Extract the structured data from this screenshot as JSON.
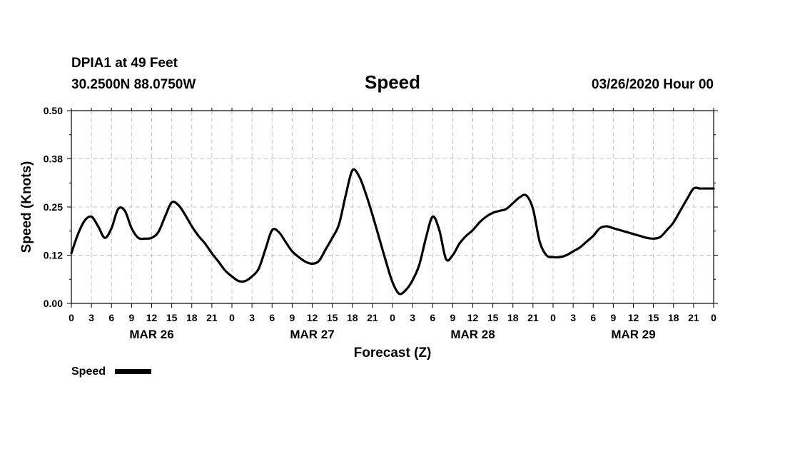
{
  "header": {
    "station": "DPIA1 at 49 Feet",
    "coords": "30.2500N 88.0750W",
    "title": "Speed",
    "run": "03/26/2020 Hour 00"
  },
  "legend": {
    "label": "Speed"
  },
  "colors": {
    "line": "#000000",
    "grid": "#c8c8c8"
  },
  "chart_data": {
    "type": "line",
    "title": "Speed",
    "xlabel": "Forecast (Z)",
    "ylabel": "Speed (Knots)",
    "ylim": [
      0,
      0.5
    ],
    "yticks": [
      "0.00",
      "0.12",
      "0.25",
      "0.38",
      "0.50"
    ],
    "xlim_hours": [
      0,
      96
    ],
    "xtick_labels": [
      "0",
      "3",
      "6",
      "9",
      "12",
      "15",
      "18",
      "21",
      "0",
      "3",
      "6",
      "9",
      "12",
      "15",
      "18",
      "21",
      "0",
      "3",
      "6",
      "9",
      "12",
      "15",
      "18",
      "21",
      "0",
      "3",
      "6",
      "9",
      "12",
      "15",
      "18",
      "21",
      "0"
    ],
    "date_labels": [
      {
        "hour": 12,
        "label": "MAR 26"
      },
      {
        "hour": 36,
        "label": "MAR 27"
      },
      {
        "hour": 60,
        "label": "MAR 28"
      },
      {
        "hour": 84,
        "label": "MAR 29"
      }
    ],
    "grid": true,
    "legend_position": "bottom-left",
    "series": [
      {
        "name": "Speed",
        "x_hours": [
          0,
          1,
          2,
          3,
          4,
          5,
          6,
          7,
          8,
          9,
          10,
          11,
          12,
          13,
          14,
          15,
          16,
          17,
          18,
          19,
          20,
          21,
          22,
          23,
          24,
          25,
          26,
          27,
          28,
          29,
          30,
          31,
          32,
          33,
          34,
          35,
          36,
          37,
          38,
          39,
          40,
          41,
          42,
          43,
          44,
          45,
          46,
          47,
          48,
          49,
          50,
          51,
          52,
          53,
          54,
          55,
          56,
          57,
          58,
          59,
          60,
          61,
          62,
          63,
          64,
          65,
          66,
          67,
          68,
          69,
          70,
          71,
          72,
          73,
          74,
          75,
          76,
          77,
          78,
          79,
          80,
          81,
          82,
          83,
          84,
          85,
          86,
          87,
          88,
          89,
          90,
          91,
          92,
          93,
          94,
          95,
          96
        ],
        "values": [
          0.13,
          0.18,
          0.215,
          0.225,
          0.2,
          0.17,
          0.195,
          0.245,
          0.24,
          0.195,
          0.17,
          0.168,
          0.17,
          0.185,
          0.225,
          0.262,
          0.255,
          0.23,
          0.2,
          0.175,
          0.155,
          0.13,
          0.108,
          0.085,
          0.07,
          0.058,
          0.058,
          0.07,
          0.09,
          0.14,
          0.19,
          0.185,
          0.16,
          0.135,
          0.12,
          0.108,
          0.103,
          0.11,
          0.14,
          0.17,
          0.205,
          0.28,
          0.345,
          0.33,
          0.285,
          0.23,
          0.17,
          0.11,
          0.055,
          0.025,
          0.035,
          0.06,
          0.1,
          0.17,
          0.225,
          0.19,
          0.115,
          0.125,
          0.155,
          0.175,
          0.19,
          0.21,
          0.225,
          0.235,
          0.24,
          0.245,
          0.26,
          0.275,
          0.28,
          0.245,
          0.16,
          0.125,
          0.12,
          0.12,
          0.125,
          0.135,
          0.145,
          0.16,
          0.175,
          0.195,
          0.2,
          0.195,
          0.19,
          0.185,
          0.18,
          0.175,
          0.17,
          0.168,
          0.172,
          0.19,
          0.21,
          0.24,
          0.27,
          0.298,
          0.298,
          0.298,
          0.298
        ]
      }
    ]
  }
}
